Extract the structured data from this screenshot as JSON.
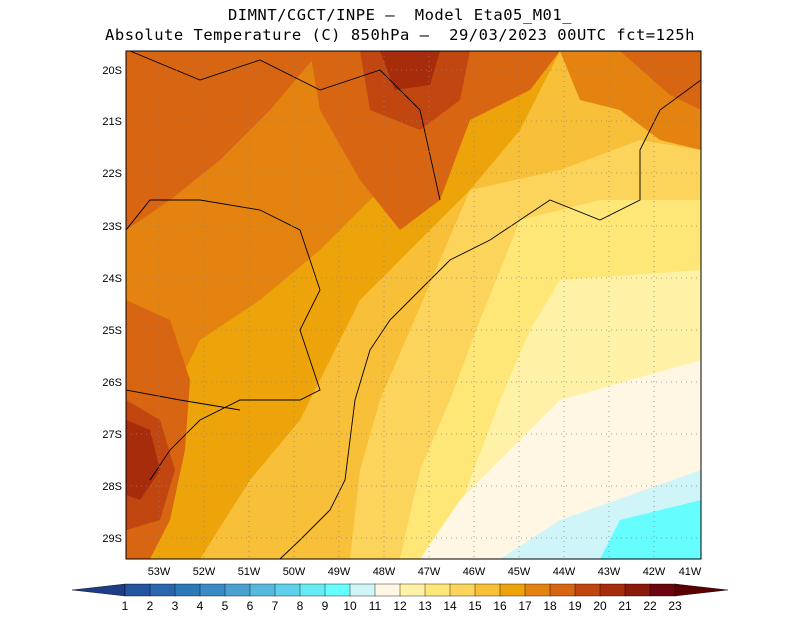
{
  "title": {
    "line1": "DIMNT/CGCT/INPE –  Model Eta05_M01_",
    "line2": "Absolute Temperature (C) 850hPa –  29/03/2023 00UTC fct=125h"
  },
  "axes": {
    "lat_labels": [
      "20S",
      "21S",
      "22S",
      "23S",
      "24S",
      "25S",
      "26S",
      "27S",
      "28S",
      "29S"
    ],
    "lon_labels": [
      "53W",
      "52W",
      "51W",
      "50W",
      "49W",
      "48W",
      "47W",
      "46W",
      "45W",
      "44W",
      "43W",
      "42W",
      "41W"
    ]
  },
  "colorbar": {
    "labels": [
      "1",
      "2",
      "3",
      "4",
      "5",
      "6",
      "7",
      "8",
      "9",
      "10",
      "11",
      "12",
      "13",
      "14",
      "15",
      "16",
      "17",
      "18",
      "19",
      "20",
      "21",
      "22",
      "23"
    ],
    "colors": [
      "#1f3c87",
      "#24549f",
      "#2a66ad",
      "#2f78b8",
      "#3a8ac3",
      "#4aa1d0",
      "#55b9de",
      "#5fd0ea",
      "#66ebf5",
      "#66fdff",
      "#cff5f8",
      "#fff6e4",
      "#fff2a6",
      "#fee777",
      "#fdd45b",
      "#f8bf38",
      "#eda30a",
      "#e4830f",
      "#d86512",
      "#c2460f",
      "#a72c0c",
      "#8c1a0a",
      "#6c0510",
      "#5b0000"
    ]
  },
  "map": {
    "lon_range": [
      -53.4,
      -40.6
    ],
    "lat_range": [
      -29.5,
      -19.9
    ],
    "grid": "dotted",
    "projection": "lat-lon"
  }
}
